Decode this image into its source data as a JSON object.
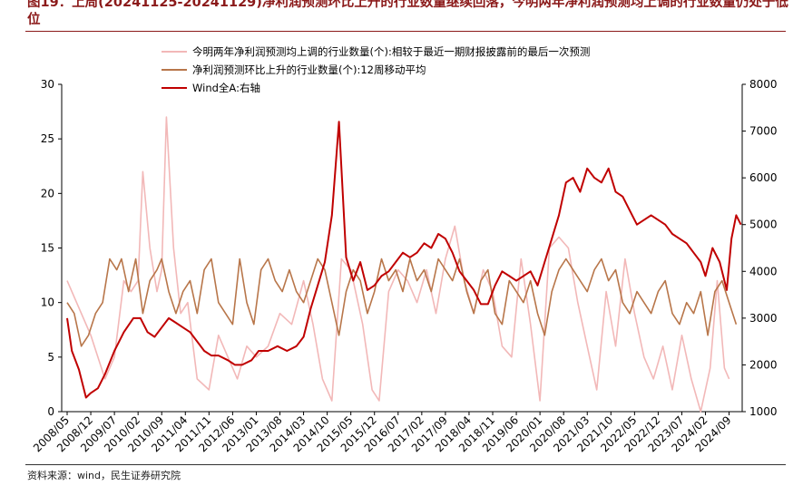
{
  "figure": {
    "title": "图19：上周(20241125-20241129)净利润预测环比上升的行业数量继续回落，今明两年净利润预测均上调的行业数量仍处于低位",
    "source": "资料来源：wind，民生证券研究院"
  },
  "chart_data": {
    "type": "line",
    "title": "",
    "x_labels": [
      "2008/05",
      "2008/12",
      "2009/07",
      "2010/02",
      "2010/09",
      "2011/04",
      "2011/11",
      "2012/06",
      "2013/01",
      "2013/08",
      "2014/03",
      "2014/10",
      "2015/05",
      "2015/12",
      "2016/07",
      "2017/02",
      "2017/09",
      "2018/04",
      "2018/11",
      "2019/06",
      "2020/01",
      "2020/08",
      "2021/03",
      "2021/10",
      "2022/05",
      "2022/12",
      "2023/07",
      "2024/02",
      "2024/09"
    ],
    "y_left": {
      "min": 0,
      "max": 30,
      "ticks": [
        0,
        5,
        10,
        15,
        20,
        25,
        30
      ]
    },
    "y_right": {
      "min": 1000,
      "max": 8000,
      "ticks": [
        1000,
        2000,
        3000,
        4000,
        5000,
        6000,
        7000,
        8000
      ]
    },
    "legend_position": "top-center",
    "grid": false,
    "series": [
      {
        "name": "今明两年净利润预测均上调的行业数量(个):相较于最近一期财报披露前的最后一次预测",
        "axis": "left",
        "color": "#f2b8b8",
        "points": [
          [
            0,
            12
          ],
          [
            1,
            7
          ],
          [
            1.6,
            3
          ],
          [
            2,
            5
          ],
          [
            2.4,
            12
          ],
          [
            2.7,
            11
          ],
          [
            3,
            12
          ],
          [
            3.2,
            22
          ],
          [
            3.5,
            15
          ],
          [
            3.8,
            11
          ],
          [
            4,
            13
          ],
          [
            4.2,
            27
          ],
          [
            4.5,
            15
          ],
          [
            4.8,
            9
          ],
          [
            5.1,
            10
          ],
          [
            5.5,
            3
          ],
          [
            6,
            2
          ],
          [
            6.4,
            7
          ],
          [
            6.8,
            5
          ],
          [
            7.2,
            3
          ],
          [
            7.6,
            6
          ],
          [
            8,
            5
          ],
          [
            8.5,
            6
          ],
          [
            9,
            9
          ],
          [
            9.5,
            8
          ],
          [
            10,
            12
          ],
          [
            10.4,
            8
          ],
          [
            10.8,
            3
          ],
          [
            11.2,
            1
          ],
          [
            11.6,
            14
          ],
          [
            12,
            13
          ],
          [
            12.5,
            8
          ],
          [
            12.9,
            2
          ],
          [
            13.2,
            1
          ],
          [
            13.6,
            11
          ],
          [
            14,
            13
          ],
          [
            14.4,
            12
          ],
          [
            14.8,
            10
          ],
          [
            15.2,
            13
          ],
          [
            15.6,
            9
          ],
          [
            16,
            14
          ],
          [
            16.4,
            17
          ],
          [
            16.8,
            12
          ],
          [
            17.2,
            9
          ],
          [
            17.6,
            13
          ],
          [
            18,
            11
          ],
          [
            18.4,
            6
          ],
          [
            18.8,
            5
          ],
          [
            19.2,
            14
          ],
          [
            19.6,
            8
          ],
          [
            20,
            1
          ],
          [
            20.4,
            15
          ],
          [
            20.8,
            16
          ],
          [
            21.2,
            15
          ],
          [
            21.6,
            10
          ],
          [
            22,
            6
          ],
          [
            22.4,
            2
          ],
          [
            22.8,
            11
          ],
          [
            23.2,
            6
          ],
          [
            23.6,
            14
          ],
          [
            24,
            9
          ],
          [
            24.4,
            5
          ],
          [
            24.8,
            3
          ],
          [
            25.2,
            6
          ],
          [
            25.6,
            2
          ],
          [
            26,
            7
          ],
          [
            26.4,
            3
          ],
          [
            26.8,
            0
          ],
          [
            27.2,
            4
          ],
          [
            27.5,
            12
          ],
          [
            27.8,
            4
          ],
          [
            28,
            3
          ]
        ]
      },
      {
        "name": "净利润预测环比上升的行业数量(个):12周移动平均",
        "axis": "left",
        "color": "#b8764a",
        "points": [
          [
            0,
            10
          ],
          [
            0.3,
            9
          ],
          [
            0.6,
            6
          ],
          [
            0.9,
            7
          ],
          [
            1.2,
            9
          ],
          [
            1.5,
            10
          ],
          [
            1.8,
            14
          ],
          [
            2.1,
            13
          ],
          [
            2.3,
            14
          ],
          [
            2.6,
            11
          ],
          [
            2.9,
            14
          ],
          [
            3.2,
            9
          ],
          [
            3.5,
            12
          ],
          [
            3.8,
            13
          ],
          [
            4,
            14
          ],
          [
            4.3,
            11
          ],
          [
            4.6,
            9
          ],
          [
            4.9,
            11
          ],
          [
            5.2,
            12
          ],
          [
            5.5,
            9
          ],
          [
            5.8,
            13
          ],
          [
            6.1,
            14
          ],
          [
            6.4,
            10
          ],
          [
            6.7,
            9
          ],
          [
            7,
            8
          ],
          [
            7.3,
            14
          ],
          [
            7.6,
            10
          ],
          [
            7.9,
            8
          ],
          [
            8.2,
            13
          ],
          [
            8.5,
            14
          ],
          [
            8.8,
            12
          ],
          [
            9.1,
            11
          ],
          [
            9.4,
            13
          ],
          [
            9.7,
            11
          ],
          [
            10,
            10
          ],
          [
            10.3,
            12
          ],
          [
            10.6,
            14
          ],
          [
            10.9,
            13
          ],
          [
            11.2,
            10
          ],
          [
            11.5,
            7
          ],
          [
            11.8,
            11
          ],
          [
            12.1,
            13
          ],
          [
            12.4,
            12
          ],
          [
            12.7,
            9
          ],
          [
            13,
            11
          ],
          [
            13.3,
            14
          ],
          [
            13.6,
            12
          ],
          [
            13.9,
            13
          ],
          [
            14.2,
            11
          ],
          [
            14.5,
            14
          ],
          [
            14.8,
            12
          ],
          [
            15.1,
            13
          ],
          [
            15.4,
            11
          ],
          [
            15.7,
            14
          ],
          [
            16,
            13
          ],
          [
            16.3,
            12
          ],
          [
            16.6,
            14
          ],
          [
            16.9,
            11
          ],
          [
            17.2,
            9
          ],
          [
            17.5,
            12
          ],
          [
            17.8,
            13
          ],
          [
            18.1,
            9
          ],
          [
            18.4,
            8
          ],
          [
            18.7,
            12
          ],
          [
            19,
            11
          ],
          [
            19.3,
            10
          ],
          [
            19.6,
            12
          ],
          [
            19.9,
            9
          ],
          [
            20.2,
            7
          ],
          [
            20.5,
            11
          ],
          [
            20.8,
            13
          ],
          [
            21.1,
            14
          ],
          [
            21.4,
            13
          ],
          [
            21.7,
            12
          ],
          [
            22,
            11
          ],
          [
            22.3,
            13
          ],
          [
            22.6,
            14
          ],
          [
            22.9,
            12
          ],
          [
            23.2,
            13
          ],
          [
            23.5,
            10
          ],
          [
            23.8,
            9
          ],
          [
            24.1,
            11
          ],
          [
            24.4,
            10
          ],
          [
            24.7,
            9
          ],
          [
            25,
            11
          ],
          [
            25.3,
            12
          ],
          [
            25.6,
            9
          ],
          [
            25.9,
            8
          ],
          [
            26.2,
            10
          ],
          [
            26.5,
            9
          ],
          [
            26.8,
            11
          ],
          [
            27.1,
            7
          ],
          [
            27.4,
            11
          ],
          [
            27.7,
            12
          ],
          [
            28,
            10
          ],
          [
            28.3,
            8
          ]
        ]
      },
      {
        "name": "Wind全A:右轴",
        "axis": "right",
        "color": "#c00000",
        "points": [
          [
            0,
            3000
          ],
          [
            0.2,
            2300
          ],
          [
            0.5,
            1900
          ],
          [
            0.8,
            1300
          ],
          [
            1,
            1400
          ],
          [
            1.3,
            1500
          ],
          [
            1.6,
            1800
          ],
          [
            2,
            2300
          ],
          [
            2.4,
            2700
          ],
          [
            2.8,
            3000
          ],
          [
            3.1,
            3000
          ],
          [
            3.4,
            2700
          ],
          [
            3.7,
            2600
          ],
          [
            4,
            2800
          ],
          [
            4.3,
            3000
          ],
          [
            4.6,
            2900
          ],
          [
            4.9,
            2800
          ],
          [
            5.2,
            2700
          ],
          [
            5.5,
            2500
          ],
          [
            5.8,
            2300
          ],
          [
            6.1,
            2200
          ],
          [
            6.4,
            2200
          ],
          [
            6.8,
            2100
          ],
          [
            7.1,
            2000
          ],
          [
            7.4,
            2000
          ],
          [
            7.8,
            2100
          ],
          [
            8.1,
            2300
          ],
          [
            8.5,
            2300
          ],
          [
            8.9,
            2400
          ],
          [
            9.3,
            2300
          ],
          [
            9.7,
            2400
          ],
          [
            10,
            2600
          ],
          [
            10.3,
            3200
          ],
          [
            10.6,
            3700
          ],
          [
            10.9,
            4200
          ],
          [
            11.2,
            5200
          ],
          [
            11.5,
            7200
          ],
          [
            11.8,
            4300
          ],
          [
            12.1,
            3800
          ],
          [
            12.4,
            4200
          ],
          [
            12.7,
            3600
          ],
          [
            13,
            3700
          ],
          [
            13.3,
            3900
          ],
          [
            13.6,
            4000
          ],
          [
            13.9,
            4200
          ],
          [
            14.2,
            4400
          ],
          [
            14.5,
            4300
          ],
          [
            14.8,
            4400
          ],
          [
            15.1,
            4600
          ],
          [
            15.4,
            4500
          ],
          [
            15.7,
            4800
          ],
          [
            16,
            4700
          ],
          [
            16.3,
            4400
          ],
          [
            16.6,
            4000
          ],
          [
            16.9,
            3800
          ],
          [
            17.2,
            3600
          ],
          [
            17.5,
            3300
          ],
          [
            17.8,
            3300
          ],
          [
            18.1,
            3700
          ],
          [
            18.4,
            4000
          ],
          [
            18.7,
            3900
          ],
          [
            19,
            3800
          ],
          [
            19.3,
            3900
          ],
          [
            19.6,
            4000
          ],
          [
            19.9,
            3700
          ],
          [
            20.2,
            4200
          ],
          [
            20.5,
            4700
          ],
          [
            20.8,
            5200
          ],
          [
            21.1,
            5900
          ],
          [
            21.4,
            6000
          ],
          [
            21.7,
            5700
          ],
          [
            22,
            6200
          ],
          [
            22.3,
            6000
          ],
          [
            22.6,
            5900
          ],
          [
            22.9,
            6200
          ],
          [
            23.2,
            5700
          ],
          [
            23.5,
            5600
          ],
          [
            23.8,
            5300
          ],
          [
            24.1,
            5000
          ],
          [
            24.4,
            5100
          ],
          [
            24.7,
            5200
          ],
          [
            25,
            5100
          ],
          [
            25.3,
            5000
          ],
          [
            25.6,
            4800
          ],
          [
            25.9,
            4700
          ],
          [
            26.2,
            4600
          ],
          [
            26.5,
            4400
          ],
          [
            26.8,
            4200
          ],
          [
            27,
            3900
          ],
          [
            27.3,
            4500
          ],
          [
            27.6,
            4200
          ],
          [
            27.9,
            3600
          ],
          [
            28.1,
            4700
          ],
          [
            28.3,
            5200
          ],
          [
            28.5,
            5000
          ]
        ]
      }
    ]
  }
}
